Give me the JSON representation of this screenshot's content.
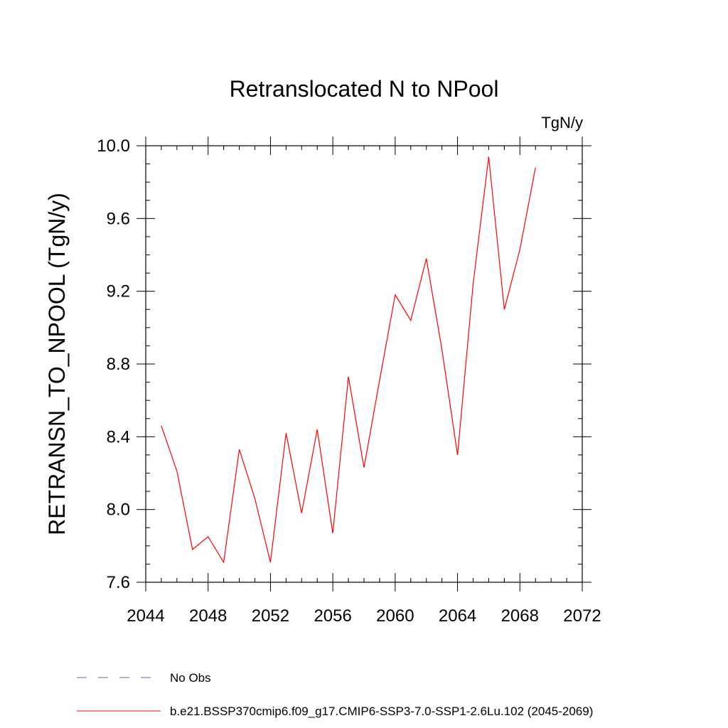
{
  "chart_data": {
    "type": "line",
    "title": "Retranslocated N to NPool",
    "units": "TgN/y",
    "ylabel": "RETRANSN_TO_NPOOL  (TgN/y)",
    "xlabel": "",
    "xlim": [
      2044,
      2072
    ],
    "ylim": [
      7.6,
      10.0
    ],
    "x_ticks": [
      2044,
      2048,
      2052,
      2056,
      2060,
      2064,
      2068,
      2072
    ],
    "x_tick_labels": [
      "2044",
      "2048",
      "2052",
      "2056",
      "2060",
      "2064",
      "2068",
      "2072"
    ],
    "y_ticks": [
      7.6,
      8.0,
      8.4,
      8.8,
      9.2,
      9.6,
      10.0
    ],
    "y_tick_labels": [
      "7.6",
      "8.0",
      "8.4",
      "8.8",
      "9.2",
      "9.6",
      "10.0"
    ],
    "grid": false,
    "legend_position": "bottom",
    "series": [
      {
        "name": "b.e21.BSSP370cmip6.f09_g17.CMIP6-SSP3-7.0-SSP1-2.6Lu.102 (2045-2069)",
        "color": "#ff0000",
        "style": "solid",
        "x": [
          2045,
          2046,
          2047,
          2048,
          2049,
          2050,
          2051,
          2052,
          2053,
          2054,
          2055,
          2056,
          2057,
          2058,
          2059,
          2060,
          2061,
          2062,
          2063,
          2064,
          2065,
          2066,
          2067,
          2068,
          2069
        ],
        "y": [
          8.46,
          8.21,
          7.78,
          7.85,
          7.71,
          8.33,
          8.06,
          7.71,
          8.42,
          7.98,
          8.44,
          7.87,
          8.73,
          8.23,
          8.71,
          9.18,
          9.04,
          9.38,
          8.88,
          8.3,
          9.24,
          9.94,
          9.1,
          9.43,
          9.88
        ]
      }
    ],
    "legend": [
      {
        "label": "No Obs",
        "color": "#6b5fb5",
        "style": "dashed"
      },
      {
        "label": "b.e21.BSSP370cmip6.f09_g17.CMIP6-SSP3-7.0-SSP1-2.6Lu.102 (2045-2069)",
        "color": "#ff0000",
        "style": "solid"
      }
    ]
  }
}
